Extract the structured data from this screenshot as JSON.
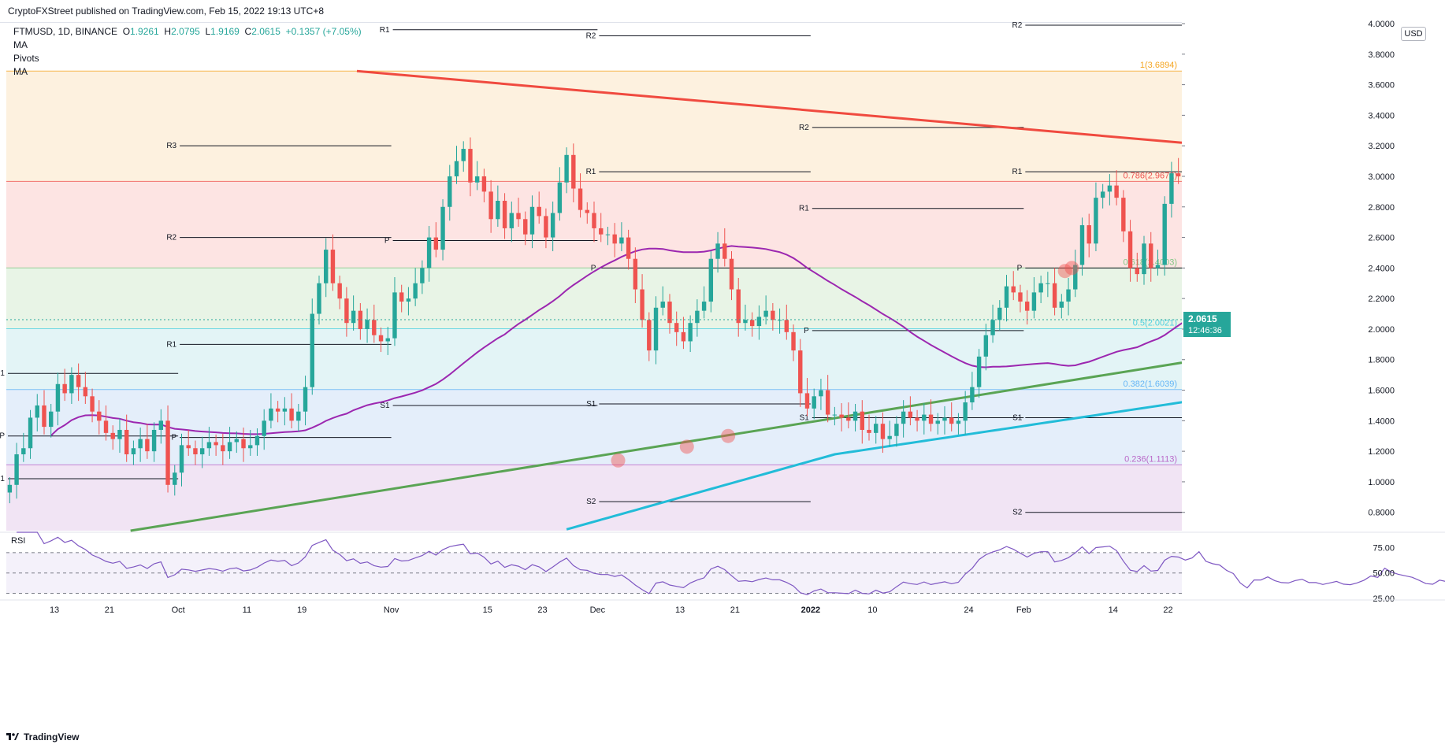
{
  "header": {
    "published_text": "CryptoFXStreet published on TradingView.com, Feb 15, 2022 19:13 UTC+8"
  },
  "legend": {
    "symbol_info": "FTMUSD, 1D, BINANCE",
    "open_label": "O",
    "open": "1.9261",
    "high_label": "H",
    "high": "2.0795",
    "low_label": "L",
    "low": "1.9169",
    "close_label": "C",
    "close": "2.0615",
    "change": "+0.1357 (+7.05%)",
    "indicators": [
      "MA",
      "Pivots",
      "MA"
    ]
  },
  "currency_badge": "USD",
  "footer": {
    "brand": "TradingView"
  },
  "colors": {
    "up": "#26a69a",
    "down": "#ef5350",
    "ma50": "#9c27b0",
    "ma200": "#22bcd8",
    "resistance_line": "#f04a3f",
    "support_line": "#5aa454",
    "rsi": "#7e57c2"
  },
  "chart_data": [
    {
      "type": "candlestick",
      "symbol": "FTMUSD",
      "interval": "1D",
      "exchange": "BINANCE",
      "y_axis": {
        "scale": "linear",
        "ylim": [
          0.68,
          4.0
        ],
        "tick_labels": [
          "4.0000",
          "3.8000",
          "3.6000",
          "3.4000",
          "3.2000",
          "3.0000",
          "2.8000",
          "2.6000",
          "2.4000",
          "2.2000",
          "2.0000",
          "1.8000",
          "1.6000",
          "1.4000",
          "1.2000",
          "1.0000",
          "0.8000"
        ],
        "currency": "USD"
      },
      "x_axis": {
        "start_date": "2021-09-06",
        "end_date": "2022-02-24",
        "tick_labels": [
          "13",
          "21",
          "Oct",
          "11",
          "19",
          "Nov",
          "15",
          "23",
          "Dec",
          "13",
          "21",
          "2022",
          "10",
          "24",
          "Feb",
          "14",
          "22"
        ]
      },
      "last_price": {
        "value": "2.0615",
        "countdown": "12:46:36"
      },
      "closes": [
        0.98,
        1.18,
        1.22,
        1.42,
        1.5,
        1.36,
        1.46,
        1.64,
        1.58,
        1.7,
        1.62,
        1.56,
        1.46,
        1.4,
        1.32,
        1.28,
        1.34,
        1.18,
        1.22,
        1.28,
        1.2,
        1.34,
        1.4,
        0.98,
        1.06,
        1.24,
        1.22,
        1.18,
        1.22,
        1.26,
        1.24,
        1.2,
        1.26,
        1.28,
        1.22,
        1.24,
        1.3,
        1.4,
        1.48,
        1.46,
        1.48,
        1.4,
        1.46,
        1.62,
        2.1,
        2.3,
        2.52,
        2.3,
        2.2,
        2.04,
        2.12,
        2,
        2.06,
        1.96,
        1.92,
        1.94,
        2.24,
        2.18,
        2.2,
        2.3,
        2.4,
        2.6,
        2.52,
        2.8,
        3,
        3.1,
        3.18,
        2.96,
        3.0,
        2.9,
        2.72,
        2.84,
        2.66,
        2.76,
        2.72,
        2.62,
        2.8,
        2.74,
        2.6,
        2.76,
        2.96,
        3.14,
        2.92,
        2.78,
        2.76,
        2.66,
        2.62,
        2.62,
        2.56,
        2.6,
        2.46,
        2.26,
        2.06,
        1.86,
        2.14,
        2.18,
        2.04,
        1.98,
        1.92,
        2.04,
        2.12,
        2.18,
        2.46,
        2.56,
        2.46,
        2.26,
        2.04,
        2.06,
        2.02,
        2.08,
        2.12,
        2.06,
        2.06,
        1.98,
        1.86,
        1.58,
        1.48,
        1.56,
        1.6,
        1.44,
        1.44,
        1.42,
        1.4,
        1.46,
        1.34,
        1.32,
        1.38,
        1.28,
        1.3,
        1.38,
        1.46,
        1.42,
        1.4,
        1.44,
        1.38,
        1.4,
        1.42,
        1.38,
        1.4,
        1.52,
        1.62,
        1.82,
        1.96,
        2.06,
        2.14,
        2.28,
        2.24,
        2.18,
        2.12,
        2.24,
        2.3,
        2.3,
        2.14,
        2.18,
        2.26,
        2.42,
        2.68,
        2.56,
        2.86,
        2.9,
        2.94,
        2.86,
        2.64,
        2.4,
        2.36,
        2.56,
        2.4,
        2.42,
        2.82,
        3.02,
        3.0,
        2.92,
        3.02,
        3.36,
        3.08,
        3.0,
        2.96,
        2.78,
        2.66,
        2.24,
        1.96,
        2.26,
        2.26,
        2.38,
        2.2,
        2.1,
        2.08,
        2.16,
        2.2,
        2.06,
        2.06,
        1.98,
        2.02,
        2.06,
        1.96,
        1.94,
        1.98,
        2.04,
        2.14,
        2.1,
        2.34,
        2.24,
        2.18,
        2.14,
        2.1,
        2.02,
        1.92,
        1.9,
        1.98,
        1.94,
        2.0615
      ],
      "moving_average_50": {
        "color": "#9c27b0"
      },
      "moving_average_200": {
        "color": "#22bcd8"
      },
      "trendlines": [
        {
          "from_date": "2021-10-27",
          "from_price": 3.6894,
          "to_date": "2022-02-24",
          "to_price": 3.22,
          "color": "#f04a3f"
        },
        {
          "from_date": "2021-09-06",
          "from_price": 0.55,
          "to_date": "2022-02-24",
          "to_price": 1.78,
          "color": "#5aa454"
        }
      ],
      "fibonacci": [
        {
          "level": "1",
          "price": "3.6894",
          "label": "1(3.6894)",
          "color": "#f5a623"
        },
        {
          "level": "0.786",
          "price": "2.9672",
          "label": "0.786(2.9672)",
          "color": "#ef5350"
        },
        {
          "level": "0.618",
          "price": "2.4003",
          "label": "0.618(2.4003)",
          "color": "#81c784"
        },
        {
          "level": "0.5",
          "price": "2.0021",
          "label": "0.5(2.0021)",
          "color": "#4dd0e1"
        },
        {
          "level": "0.382",
          "price": "1.6039",
          "label": "0.382(1.6039)",
          "color": "#64b5f6"
        },
        {
          "level": "0.236",
          "price": "1.1113",
          "label": "0.236(1.1113)",
          "color": "#ba68c8"
        }
      ],
      "pivot_labels": [
        "P",
        "R1",
        "R2",
        "R3",
        "S1",
        "S2"
      ],
      "pivots": [
        {
          "period_start": "2021-09-06",
          "period_end": "2021-10-01",
          "R1": 1.71,
          "P": 1.3,
          "S1": 1.02
        },
        {
          "period_start": "2021-10-01",
          "period_end": "2021-11-01",
          "R3": 3.2,
          "R2": 2.6,
          "R1": 1.9,
          "P": 1.29
        },
        {
          "period_start": "2021-11-01",
          "period_end": "2021-12-01",
          "R1": 3.96,
          "P": 2.58,
          "S1": 1.5
        },
        {
          "period_start": "2021-12-01",
          "period_end": "2022-01-01",
          "R2": 3.92,
          "R1": 3.03,
          "P": 2.4,
          "S1": 1.51,
          "S2": 0.87
        },
        {
          "period_start": "2022-01-01",
          "period_end": "2022-02-01",
          "R2": 3.32,
          "R1": 2.79,
          "P": 1.99,
          "S1": 1.42
        },
        {
          "period_start": "2022-02-01",
          "period_end": "2022-02-24",
          "R2": 3.99,
          "R1": 3.03,
          "P": 2.4,
          "S1": 1.42,
          "S2": 0.8
        }
      ],
      "highlight_markers": [
        {
          "date": "2021-12-04",
          "price": 1.14
        },
        {
          "date": "2021-12-14",
          "price": 1.23
        },
        {
          "date": "2021-12-20",
          "price": 1.3
        },
        {
          "date": "2022-02-07",
          "price": 2.38
        },
        {
          "date": "2022-02-08",
          "price": 2.4
        }
      ]
    },
    {
      "type": "line",
      "name": "RSI",
      "ylim": [
        25,
        90
      ],
      "tick_labels": [
        "75.00",
        "50.00",
        "25.00"
      ],
      "bands": {
        "upper": 70,
        "middle": 50,
        "lower": 30
      },
      "color": "#7e57c2"
    }
  ]
}
